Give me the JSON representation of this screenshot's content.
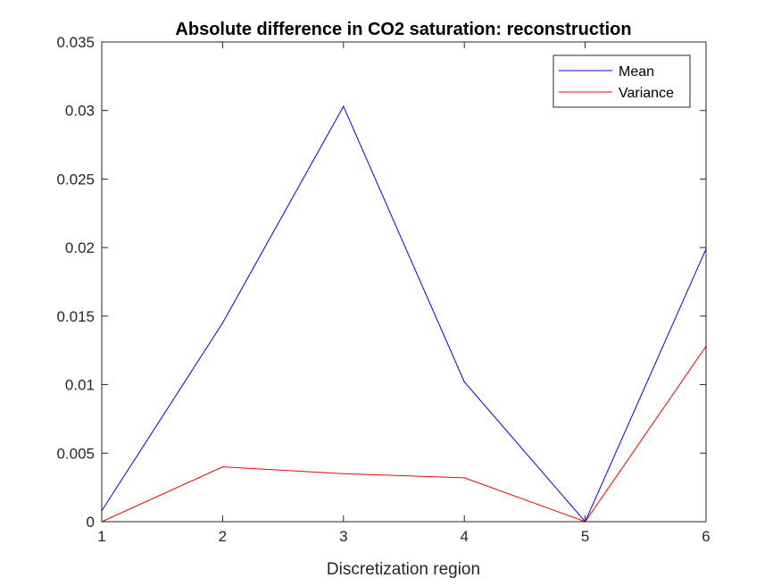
{
  "chart_data": {
    "type": "line",
    "title": "Absolute difference in CO2 saturation: reconstruction",
    "xlabel": "Discretization region",
    "ylabel": "",
    "x": [
      1,
      2,
      3,
      4,
      5,
      6
    ],
    "xlim": [
      1,
      6
    ],
    "ylim": [
      0,
      0.035
    ],
    "xticks": [
      "1",
      "2",
      "3",
      "4",
      "5",
      "6"
    ],
    "yticks": [
      "0",
      "0.005",
      "0.01",
      "0.015",
      "0.02",
      "0.025",
      "0.03",
      "0.035"
    ],
    "grid": false,
    "legend_position": "top-right",
    "series": [
      {
        "name": "Mean",
        "color": "#0000ff",
        "values": [
          0.0008,
          0.0145,
          0.0303,
          0.0102,
          0.0,
          0.0199
        ]
      },
      {
        "name": "Variance",
        "color": "#ff0000",
        "values": [
          0.0,
          0.004,
          0.0035,
          0.0032,
          0.0,
          0.0128
        ]
      }
    ]
  }
}
